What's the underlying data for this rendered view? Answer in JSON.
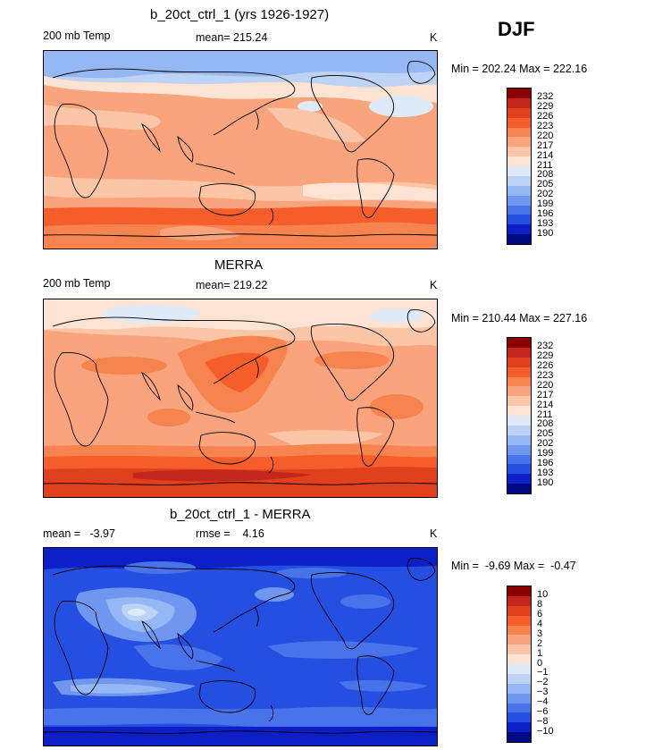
{
  "season": "DJF",
  "panels": [
    {
      "title": "b_20ct_ctrl_1 (yrs 1926-1927)",
      "left_label": "200 mb Temp",
      "center_label": "mean= 215.24",
      "units": "K",
      "stats": "Min = 202.24 Max = 222.16",
      "kind": "model",
      "colorbar": {
        "labels": [
          "232",
          "229",
          "226",
          "223",
          "220",
          "217",
          "214",
          "211",
          "208",
          "205",
          "202",
          "199",
          "196",
          "193",
          "190"
        ],
        "colors": [
          "#8b0000",
          "#c3261a",
          "#e0401c",
          "#f55e2a",
          "#f7834f",
          "#f9a47c",
          "#fbc5a7",
          "#fde3d3",
          "#dfeaf8",
          "#bcd3f6",
          "#95b7f3",
          "#6f97ef",
          "#4873ea",
          "#244fe0",
          "#0d20c7",
          "#000a83"
        ]
      }
    },
    {
      "title": "MERRA",
      "left_label": "200 mb Temp",
      "center_label": "mean= 219.22",
      "units": "K",
      "stats": "Min = 210.44 Max = 227.16",
      "kind": "obs",
      "colorbar": {
        "labels": [
          "232",
          "229",
          "226",
          "223",
          "220",
          "217",
          "214",
          "211",
          "208",
          "205",
          "202",
          "199",
          "196",
          "193",
          "190"
        ],
        "colors": [
          "#8b0000",
          "#c3261a",
          "#e0401c",
          "#f55e2a",
          "#f7834f",
          "#f9a47c",
          "#fbc5a7",
          "#fde3d3",
          "#dfeaf8",
          "#bcd3f6",
          "#95b7f3",
          "#6f97ef",
          "#4873ea",
          "#244fe0",
          "#0d20c7",
          "#000a83"
        ]
      }
    },
    {
      "title": "b_20ct_ctrl_1 - MERRA",
      "left_label": "mean =   -3.97",
      "center_label": "rmse =    4.16",
      "units": "K",
      "stats": "Min =  -9.69 Max =  -0.47",
      "kind": "diff",
      "colorbar": {
        "labels": [
          "10",
          "8",
          "6",
          "4",
          "3",
          "2",
          "1",
          "0",
          "−1",
          "−2",
          "−3",
          "−4",
          "−6",
          "−8",
          "−10"
        ],
        "colors": [
          "#8b0000",
          "#c3261a",
          "#e0401c",
          "#f55e2a",
          "#f7834f",
          "#f9a47c",
          "#fbc5a7",
          "#fde3d3",
          "#dfeaf8",
          "#bcd3f6",
          "#95b7f3",
          "#6f97ef",
          "#4873ea",
          "#244fe0",
          "#0d20c7",
          "#000a83"
        ]
      }
    }
  ]
}
